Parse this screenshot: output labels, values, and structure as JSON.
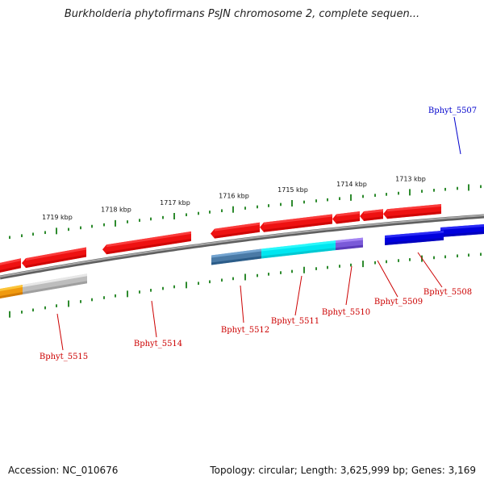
{
  "header": {
    "title": "Burkholderia phytofirmans PsJN chromosome 2, complete sequen..."
  },
  "footer": {
    "accession": "Accession: NC_010676",
    "summary": "Topology: circular; Length: 3,625,999 bp; Genes: 3,169"
  },
  "colors": {
    "backbone": "#7f7f7f",
    "tick": "#2e8b2e",
    "gene_red": "#ee1111",
    "gene_blue": "#0000dd",
    "gene_cyan": "#00e6f0",
    "gene_steel": "#4a7aa6",
    "gene_purple": "#7a5ad8",
    "gene_orange": "#f09a10",
    "gene_gray": "#bdbdbd",
    "label_red": "#cc0000",
    "label_blue": "#0000cc"
  },
  "kbp_labels": [
    "1719 kbp",
    "1718 kbp",
    "1717 kbp",
    "1716 kbp",
    "1715 kbp",
    "1714 kbp",
    "1713 kbp"
  ],
  "gene_labels": [
    "Bphyt_5507",
    "Bphyt_5508",
    "Bphyt_5509",
    "Bphyt_5510",
    "Bphyt_5511",
    "Bphyt_5512",
    "Bphyt_5514",
    "Bphyt_5515"
  ]
}
